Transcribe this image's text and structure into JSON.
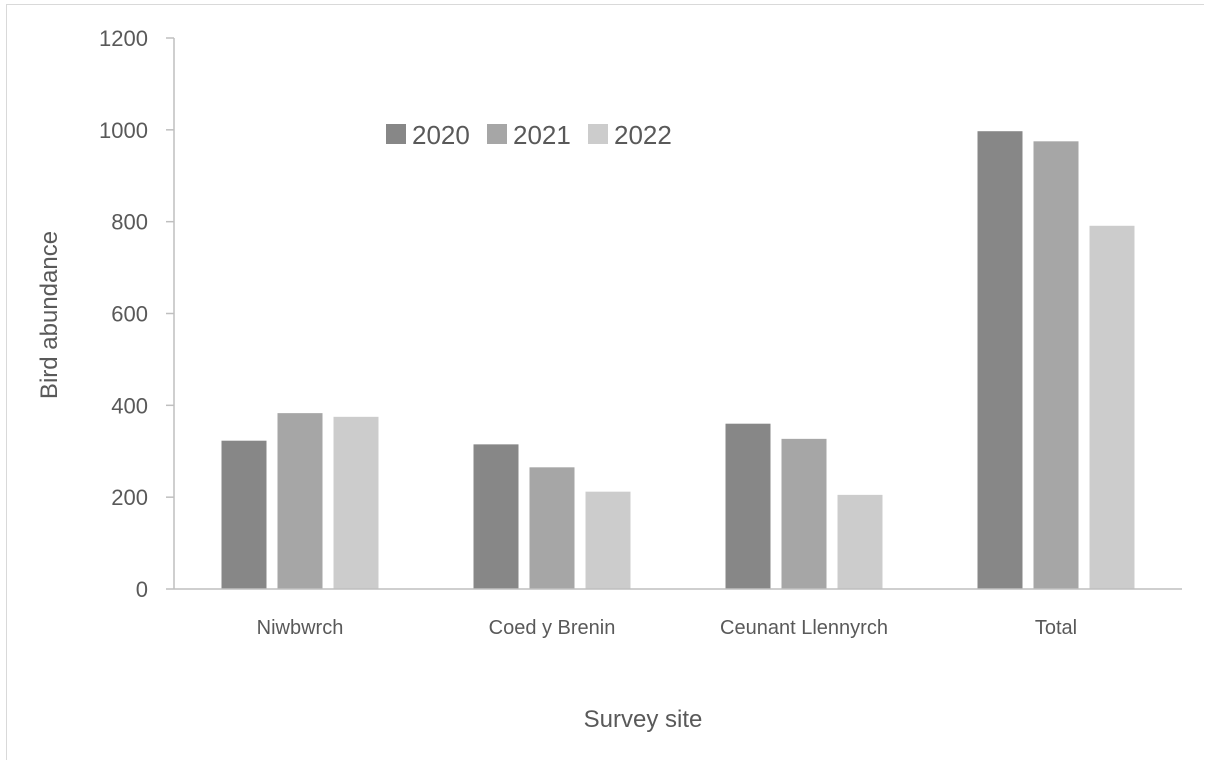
{
  "chart_data": {
    "type": "bar",
    "title": "",
    "xlabel": "Survey site",
    "ylabel": "Bird abundance",
    "ylim": [
      0,
      1200
    ],
    "yticks": [
      0,
      200,
      400,
      600,
      800,
      1000,
      1200
    ],
    "categories": [
      "Niwbwrch",
      "Coed y Brenin",
      "Ceunant Llennyrch",
      "Total"
    ],
    "series": [
      {
        "name": "2020",
        "color": "#878787",
        "values": [
          323,
          315,
          360,
          997
        ]
      },
      {
        "name": "2021",
        "color": "#a6a6a6",
        "values": [
          383,
          265,
          327,
          975
        ]
      },
      {
        "name": "2022",
        "color": "#cccccc",
        "values": [
          375,
          212,
          205,
          791
        ]
      }
    ],
    "legend": {
      "position": "top-center",
      "orientation": "horizontal"
    },
    "grid": false
  }
}
